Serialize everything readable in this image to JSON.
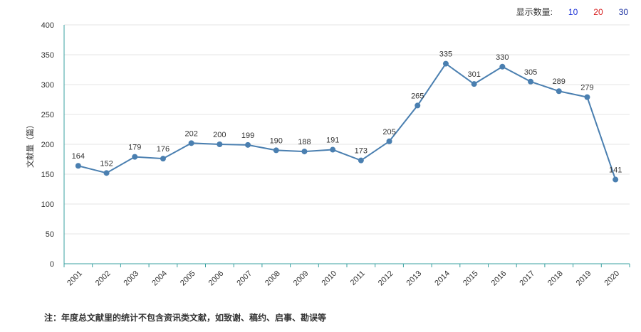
{
  "display_count": {
    "label": "显示数量:",
    "options": [
      {
        "value": "10",
        "color": "#1a2fd6"
      },
      {
        "value": "20",
        "color": "#d61a1a"
      },
      {
        "value": "30",
        "color": "#1a2fa0"
      }
    ]
  },
  "footnote": "注：年度总文献里的统计不包含资讯类文献，如致谢、稿约、启事、勘误等",
  "chart_data": {
    "type": "line",
    "ylabel": "文献量（篇）",
    "xlabel": "",
    "ylim": [
      0,
      400
    ],
    "yticks": [
      0,
      50,
      100,
      150,
      200,
      250,
      300,
      350,
      400
    ],
    "x": [
      "2001",
      "2002",
      "2003",
      "2004",
      "2005",
      "2006",
      "2007",
      "2008",
      "2009",
      "2010",
      "2011",
      "2012",
      "2013",
      "2014",
      "2015",
      "2016",
      "2017",
      "2018",
      "2019",
      "2020"
    ],
    "values": [
      164,
      152,
      179,
      176,
      202,
      200,
      199,
      190,
      188,
      191,
      173,
      205,
      265,
      335,
      301,
      330,
      305,
      289,
      279,
      141
    ],
    "line_color": "#4a7fb0",
    "grid": true
  }
}
